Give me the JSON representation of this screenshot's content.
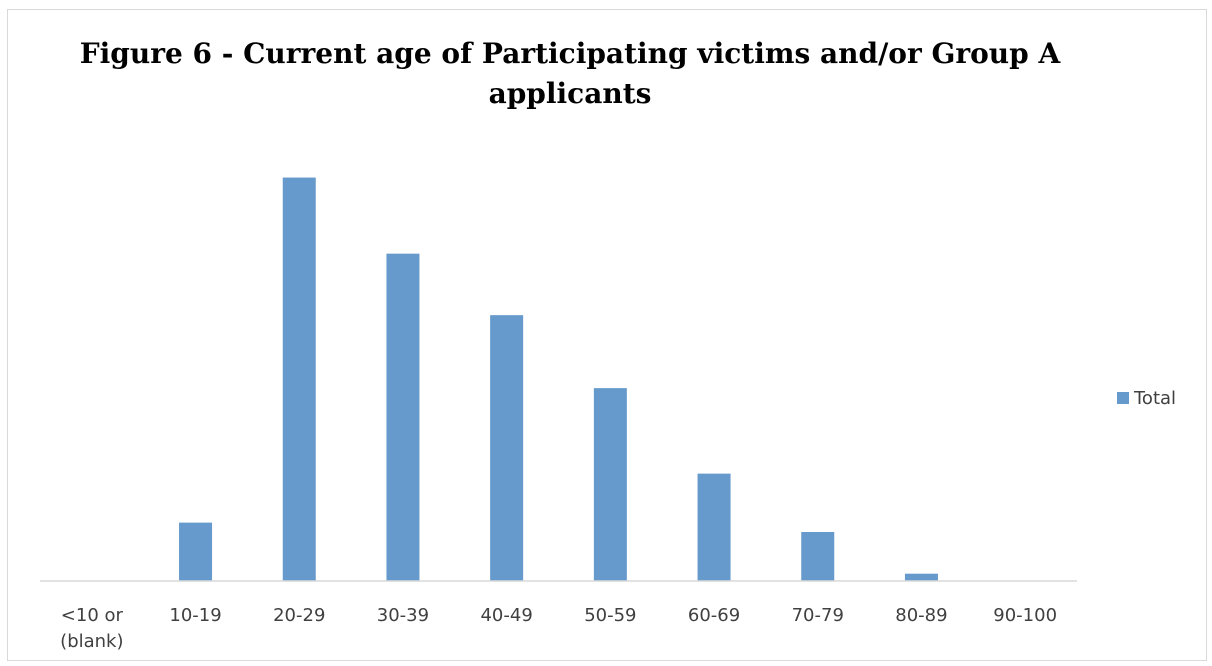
{
  "chart_data": {
    "type": "bar",
    "title": "Figure 6 - Current age of Participating victims and/or Group A applicants",
    "title_lines": [
      "Figure 6 - Current age of Participating victims and/or Group A",
      "applicants"
    ],
    "categories": [
      "<10 or (blank)",
      "10-19",
      "20-29",
      "30-39",
      "40-49",
      "50-59",
      "60-69",
      "70-79",
      "80-89",
      "90-100"
    ],
    "category_lines": [
      [
        "<10 or",
        "(blank)"
      ],
      [
        "10-19"
      ],
      [
        "20-29"
      ],
      [
        "30-39"
      ],
      [
        "40-49"
      ],
      [
        "50-59"
      ],
      [
        "60-69"
      ],
      [
        "70-79"
      ],
      [
        "80-89"
      ],
      [
        "90-100"
      ]
    ],
    "series": [
      {
        "name": "Total",
        "color": "#6699cc",
        "values": [
          0.5,
          56,
          387,
          314,
          255,
          185,
          103,
          47,
          7,
          0.5
        ]
      }
    ],
    "ylim": [
      0,
      400
    ],
    "xlabel": "",
    "ylabel": "",
    "grid": false,
    "y_axis_visible": false,
    "legend_position": "right"
  }
}
